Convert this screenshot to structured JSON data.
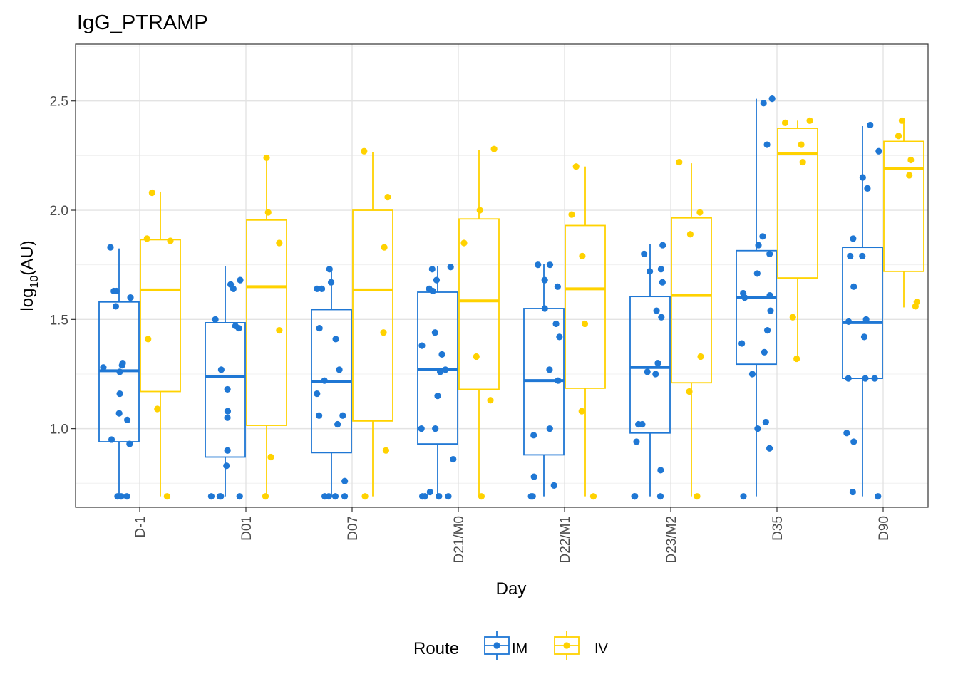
{
  "chart_data": {
    "type": "boxplot",
    "title": "IgG_PTRAMP",
    "xlabel": "Day",
    "ylabel_base": "log",
    "ylabel_sub": "10",
    "ylabel_unit": "(AU)",
    "ylim": [
      0.64,
      2.76
    ],
    "yticks": [
      1.0,
      1.5,
      2.0,
      2.5
    ],
    "ytick_labels": [
      "1.0",
      "1.5",
      "2.0",
      "2.5"
    ],
    "grid": true,
    "legend": {
      "title": "Route",
      "position": "bottom"
    },
    "categories": [
      "D-1",
      "D01",
      "D07",
      "D21/M0",
      "D22/M1",
      "D23/M2",
      "D35",
      "D90"
    ],
    "series": [
      {
        "name": "IM",
        "color": "#1f77d4",
        "boxes": [
          {
            "lower": 0.69,
            "q1": 0.94,
            "median": 1.265,
            "q3": 1.58,
            "upper": 1.825
          },
          {
            "lower": 0.69,
            "q1": 0.87,
            "median": 1.24,
            "q3": 1.485,
            "upper": 1.745
          },
          {
            "lower": 0.69,
            "q1": 0.89,
            "median": 1.215,
            "q3": 1.545,
            "upper": 1.73
          },
          {
            "lower": 0.69,
            "q1": 0.93,
            "median": 1.27,
            "q3": 1.625,
            "upper": 1.745
          },
          {
            "lower": 0.69,
            "q1": 0.88,
            "median": 1.22,
            "q3": 1.55,
            "upper": 1.755
          },
          {
            "lower": 0.69,
            "q1": 0.98,
            "median": 1.28,
            "q3": 1.605,
            "upper": 1.845
          },
          {
            "lower": 0.69,
            "q1": 1.295,
            "median": 1.6,
            "q3": 1.815,
            "upper": 2.51
          },
          {
            "lower": 0.69,
            "q1": 1.23,
            "median": 1.485,
            "q3": 1.83,
            "upper": 2.385
          }
        ],
        "points": [
          [
            0.69,
            0.69,
            0.69,
            0.95,
            0.93,
            1.04,
            1.07,
            1.16,
            1.26,
            1.28,
            1.29,
            1.3,
            1.56,
            1.6,
            1.63,
            1.63,
            1.83
          ],
          [
            0.69,
            0.69,
            0.69,
            0.69,
            0.83,
            0.9,
            1.05,
            1.08,
            1.18,
            1.27,
            1.46,
            1.47,
            1.5,
            1.64,
            1.66,
            1.68
          ],
          [
            0.69,
            0.69,
            0.69,
            0.69,
            0.76,
            1.02,
            1.06,
            1.06,
            1.16,
            1.22,
            1.27,
            1.41,
            1.46,
            1.64,
            1.64,
            1.67,
            1.73
          ],
          [
            0.69,
            0.69,
            0.69,
            0.69,
            0.71,
            0.86,
            1.0,
            1.0,
            1.15,
            1.26,
            1.27,
            1.34,
            1.38,
            1.44,
            1.63,
            1.64,
            1.68,
            1.73,
            1.74
          ],
          [
            0.69,
            0.69,
            0.74,
            0.78,
            0.97,
            1.0,
            1.22,
            1.27,
            1.42,
            1.48,
            1.55,
            1.65,
            1.68,
            1.75,
            1.75
          ],
          [
            0.69,
            0.69,
            0.69,
            0.81,
            0.94,
            1.02,
            1.02,
            1.25,
            1.26,
            1.3,
            1.51,
            1.54,
            1.67,
            1.72,
            1.73,
            1.8,
            1.84
          ],
          [
            0.69,
            0.91,
            1.0,
            1.03,
            1.25,
            1.35,
            1.39,
            1.45,
            1.54,
            1.6,
            1.61,
            1.62,
            1.71,
            1.8,
            1.84,
            1.88,
            2.3,
            2.49,
            2.51
          ],
          [
            0.69,
            0.71,
            0.94,
            0.98,
            1.23,
            1.23,
            1.23,
            1.42,
            1.49,
            1.5,
            1.65,
            1.79,
            1.79,
            1.87,
            2.1,
            2.15,
            2.27,
            2.39
          ]
        ]
      },
      {
        "name": "IV",
        "color": "#ffd200",
        "boxes": [
          {
            "lower": 0.69,
            "q1": 1.17,
            "median": 1.635,
            "q3": 1.865,
            "upper": 2.085
          },
          {
            "lower": 0.69,
            "q1": 1.015,
            "median": 1.65,
            "q3": 1.955,
            "upper": 2.235
          },
          {
            "lower": 0.69,
            "q1": 1.035,
            "median": 1.635,
            "q3": 2.0,
            "upper": 2.265
          },
          {
            "lower": 0.69,
            "q1": 1.18,
            "median": 1.585,
            "q3": 1.96,
            "upper": 2.275
          },
          {
            "lower": 0.69,
            "q1": 1.185,
            "median": 1.64,
            "q3": 1.93,
            "upper": 2.2
          },
          {
            "lower": 0.69,
            "q1": 1.21,
            "median": 1.61,
            "q3": 1.965,
            "upper": 2.215
          },
          {
            "lower": 1.315,
            "q1": 1.69,
            "median": 2.26,
            "q3": 2.375,
            "upper": 2.41
          },
          {
            "lower": 1.555,
            "q1": 1.72,
            "median": 2.19,
            "q3": 2.315,
            "upper": 2.41
          }
        ],
        "points": [
          [
            0.69,
            1.09,
            1.41,
            1.86,
            1.87,
            2.08
          ],
          [
            0.69,
            0.87,
            1.45,
            1.85,
            1.99,
            2.24
          ],
          [
            0.69,
            0.9,
            1.44,
            1.83,
            2.06,
            2.27
          ],
          [
            0.69,
            1.13,
            1.33,
            1.85,
            2.0,
            2.28
          ],
          [
            0.69,
            1.08,
            1.48,
            1.79,
            1.98,
            2.2
          ],
          [
            0.69,
            1.17,
            1.33,
            1.89,
            1.99,
            2.22
          ],
          [
            1.32,
            1.51,
            2.22,
            2.3,
            2.4,
            2.41
          ],
          [
            1.56,
            1.58,
            2.16,
            2.23,
            2.34,
            2.41
          ]
        ]
      }
    ]
  }
}
